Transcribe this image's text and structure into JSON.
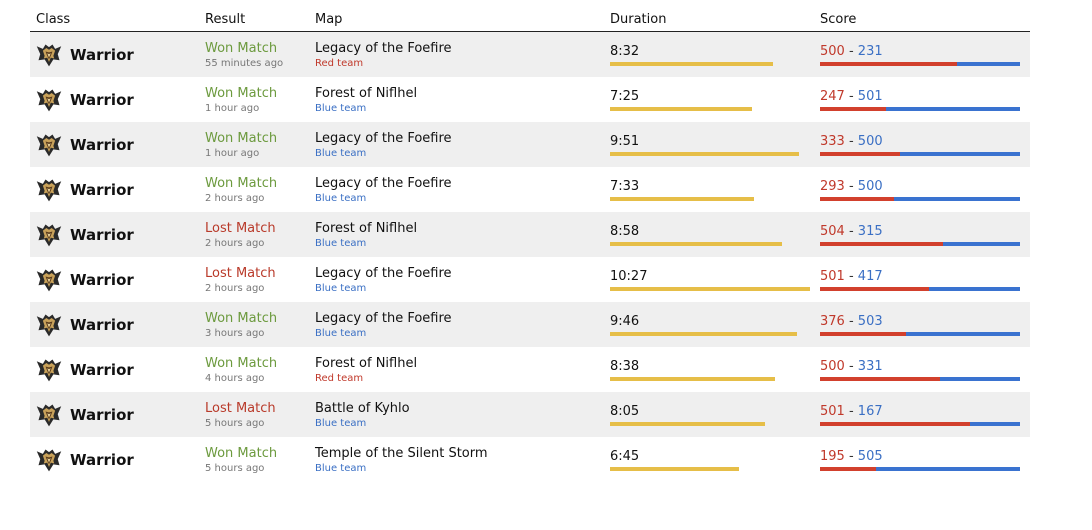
{
  "headers": {
    "class": "Class",
    "result": "Result",
    "map": "Map",
    "duration": "Duration",
    "score": "Score"
  },
  "colors": {
    "won": "#6c9a3e",
    "lost": "#b93a2a",
    "red_team": "#c0392b",
    "blue_team": "#3a6fc4",
    "duration_bar": "#e6be48",
    "score_red": "#d2402d",
    "score_blue": "#3a73d0"
  },
  "class_icon": "warrior-emblem-icon",
  "matches": [
    {
      "class": "Warrior",
      "result": "Won Match",
      "outcome": "won",
      "time": "55 minutes ago",
      "map": "Legacy of the Foefire",
      "team": "Red team",
      "team_color": "red",
      "duration": "8:32",
      "duration_fraction": 0.815,
      "red_score": "500",
      "blue_score": "231",
      "red_fraction": 0.684
    },
    {
      "class": "Warrior",
      "result": "Won Match",
      "outcome": "won",
      "time": "1 hour ago",
      "map": "Forest of Niflhel",
      "team": "Blue team",
      "team_color": "blue",
      "duration": "7:25",
      "duration_fraction": 0.71,
      "red_score": "247",
      "blue_score": "501",
      "red_fraction": 0.33
    },
    {
      "class": "Warrior",
      "result": "Won Match",
      "outcome": "won",
      "time": "1 hour ago",
      "map": "Legacy of the Foefire",
      "team": "Blue team",
      "team_color": "blue",
      "duration": "9:51",
      "duration_fraction": 0.945,
      "red_score": "333",
      "blue_score": "500",
      "red_fraction": 0.4
    },
    {
      "class": "Warrior",
      "result": "Won Match",
      "outcome": "won",
      "time": "2 hours ago",
      "map": "Legacy of the Foefire",
      "team": "Blue team",
      "team_color": "blue",
      "duration": "7:33",
      "duration_fraction": 0.72,
      "red_score": "293",
      "blue_score": "500",
      "red_fraction": 0.37
    },
    {
      "class": "Warrior",
      "result": "Lost Match",
      "outcome": "lost",
      "time": "2 hours ago",
      "map": "Forest of Niflhel",
      "team": "Blue team",
      "team_color": "blue",
      "duration": "8:58",
      "duration_fraction": 0.86,
      "red_score": "504",
      "blue_score": "315",
      "red_fraction": 0.615
    },
    {
      "class": "Warrior",
      "result": "Lost Match",
      "outcome": "lost",
      "time": "2 hours ago",
      "map": "Legacy of the Foefire",
      "team": "Blue team",
      "team_color": "blue",
      "duration": "10:27",
      "duration_fraction": 1.0,
      "red_score": "501",
      "blue_score": "417",
      "red_fraction": 0.545
    },
    {
      "class": "Warrior",
      "result": "Won Match",
      "outcome": "won",
      "time": "3 hours ago",
      "map": "Legacy of the Foefire",
      "team": "Blue team",
      "team_color": "blue",
      "duration": "9:46",
      "duration_fraction": 0.935,
      "red_score": "376",
      "blue_score": "503",
      "red_fraction": 0.43
    },
    {
      "class": "Warrior",
      "result": "Won Match",
      "outcome": "won",
      "time": "4 hours ago",
      "map": "Forest of Niflhel",
      "team": "Red team",
      "team_color": "red",
      "duration": "8:38",
      "duration_fraction": 0.825,
      "red_score": "500",
      "blue_score": "331",
      "red_fraction": 0.6
    },
    {
      "class": "Warrior",
      "result": "Lost Match",
      "outcome": "lost",
      "time": "5 hours ago",
      "map": "Battle of Kyhlo",
      "team": "Blue team",
      "team_color": "blue",
      "duration": "8:05",
      "duration_fraction": 0.775,
      "red_score": "501",
      "blue_score": "167",
      "red_fraction": 0.75
    },
    {
      "class": "Warrior",
      "result": "Won Match",
      "outcome": "won",
      "time": "5 hours ago",
      "map": "Temple of the Silent Storm",
      "team": "Blue team",
      "team_color": "blue",
      "duration": "6:45",
      "duration_fraction": 0.645,
      "red_score": "195",
      "blue_score": "505",
      "red_fraction": 0.28
    }
  ]
}
